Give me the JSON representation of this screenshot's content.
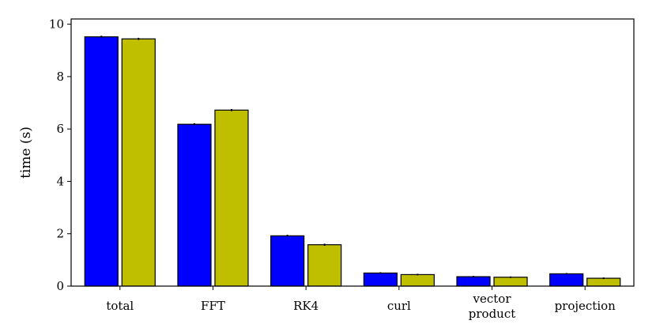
{
  "chart_data": {
    "type": "bar",
    "title": "",
    "xlabel": "",
    "ylabel": "time (s)",
    "ylim": [
      0,
      10.2
    ],
    "yticks": [
      0,
      2,
      4,
      6,
      8,
      10
    ],
    "grid": false,
    "legend": "none",
    "categories": [
      [
        "total"
      ],
      [
        "FFT"
      ],
      [
        "RK4"
      ],
      [
        "curl"
      ],
      [
        "vector",
        "product"
      ],
      [
        "projection"
      ]
    ],
    "series": [
      {
        "color": "#0000ff",
        "values": [
          9.52,
          6.18,
          1.92,
          0.5,
          0.36,
          0.47
        ],
        "errors": [
          0.04,
          0.04,
          0.04,
          0.03,
          0.03,
          0.03
        ]
      },
      {
        "color": "#bfbf00",
        "values": [
          9.44,
          6.72,
          1.58,
          0.44,
          0.34,
          0.3
        ],
        "errors": [
          0.04,
          0.04,
          0.04,
          0.03,
          0.03,
          0.03
        ]
      }
    ]
  }
}
